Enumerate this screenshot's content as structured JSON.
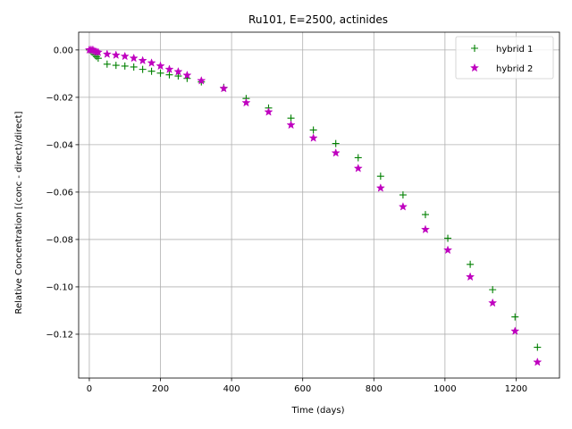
{
  "chart_data": {
    "type": "scatter",
    "title": "Ru101, E=2500, actinides",
    "xlabel": "Time (days)",
    "ylabel": "Relative Concentration [(conc - direct)/direct]",
    "xlim": [
      -30,
      1322
    ],
    "ylim": [
      -0.1385,
      0.0075
    ],
    "xticks": [
      0,
      200,
      400,
      600,
      800,
      1000,
      1200
    ],
    "yticks": [
      0.0,
      -0.02,
      -0.04,
      -0.06,
      -0.08,
      -0.1,
      -0.12
    ],
    "ytick_labels": [
      "0.00",
      "−0.02",
      "−0.04",
      "−0.06",
      "−0.08",
      "−0.10",
      "−0.12"
    ],
    "grid": true,
    "legend_position": "top-right",
    "series": [
      {
        "name": "hybrid 1",
        "marker": "plus",
        "color": "#008000",
        "x": [
          0,
          5,
          10,
          15,
          20,
          25,
          50,
          75,
          100,
          125,
          150,
          175,
          200,
          225,
          250,
          275,
          315,
          378,
          441,
          504,
          567,
          630,
          693,
          756,
          819,
          882,
          945,
          1008,
          1071,
          1134,
          1197,
          1260
        ],
        "y": [
          0.0,
          -0.0005,
          -0.001,
          -0.002,
          -0.0028,
          -0.0035,
          -0.006,
          -0.0065,
          -0.0068,
          -0.0072,
          -0.0082,
          -0.009,
          -0.0098,
          -0.0105,
          -0.011,
          -0.012,
          -0.0135,
          -0.0158,
          -0.0205,
          -0.0245,
          -0.0288,
          -0.0338,
          -0.0395,
          -0.0455,
          -0.0533,
          -0.0612,
          -0.0695,
          -0.0795,
          -0.0905,
          -0.1012,
          -0.1127,
          -0.1255
        ]
      },
      {
        "name": "hybrid 2",
        "marker": "star",
        "color": "#bf00bf",
        "x": [
          0,
          5,
          10,
          15,
          20,
          25,
          50,
          75,
          100,
          125,
          150,
          175,
          200,
          225,
          250,
          275,
          315,
          378,
          441,
          504,
          567,
          630,
          693,
          756,
          819,
          882,
          945,
          1008,
          1071,
          1134,
          1197,
          1260
        ],
        "y": [
          0.0,
          0.0,
          0.0,
          -0.0005,
          -0.0008,
          -0.001,
          -0.0018,
          -0.0022,
          -0.0027,
          -0.0035,
          -0.0045,
          -0.0055,
          -0.0068,
          -0.0082,
          -0.0092,
          -0.0107,
          -0.013,
          -0.0163,
          -0.0223,
          -0.0262,
          -0.0317,
          -0.0372,
          -0.0435,
          -0.05,
          -0.0583,
          -0.0662,
          -0.0758,
          -0.0845,
          -0.0958,
          -0.1068,
          -0.1187,
          -0.1318
        ]
      }
    ]
  }
}
